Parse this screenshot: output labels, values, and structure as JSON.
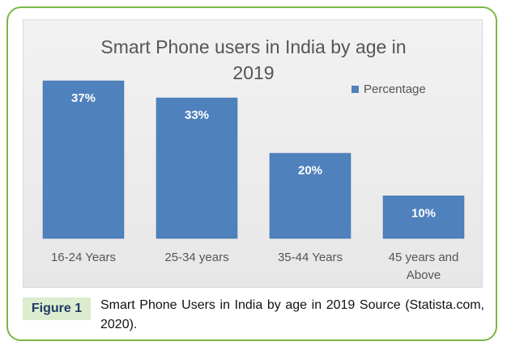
{
  "figure": {
    "label": "Figure 1",
    "caption": "Smart Phone Users in India by age in 2019 Source (Statista.com, 2020)."
  },
  "colors": {
    "bar": "#4f81bd",
    "bar_dark": "#3e6ea8",
    "border": "#7ab648",
    "caption_bg": "#dceccf"
  },
  "chart_data": {
    "type": "bar",
    "title": "Smart Phone users in India by age in 2019",
    "title_lines": [
      "Smart Phone users in India by age in",
      "2019"
    ],
    "categories": [
      "16-24 Years",
      "25-34 years",
      "35-44 Years",
      "45 years and Above"
    ],
    "category_lines": [
      [
        "16-24 Years"
      ],
      [
        "25-34 years"
      ],
      [
        "35-44 Years"
      ],
      [
        "45 years and",
        "Above"
      ]
    ],
    "series": [
      {
        "name": "Percentage",
        "values": [
          37,
          33,
          20,
          10
        ]
      }
    ],
    "data_labels": [
      "37%",
      "33%",
      "20%",
      "10%"
    ],
    "ylim": [
      0,
      37
    ],
    "xlabel": "",
    "ylabel": "",
    "grid": false,
    "legend": {
      "position": "top-right",
      "entries": [
        "Percentage"
      ]
    }
  }
}
